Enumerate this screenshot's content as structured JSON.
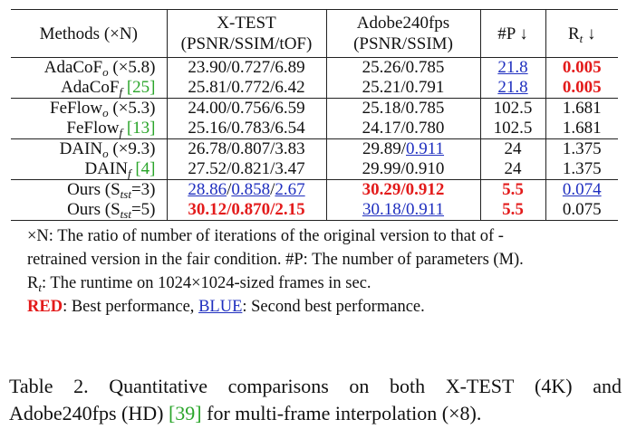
{
  "table": {
    "header": {
      "methods": "Methods (×N)",
      "xtest_line1": "X-TEST",
      "xtest_line2": "(PSNR/SSIM/tOF)",
      "adobe_line1": "Adobe240fps",
      "adobe_line2": "(PSNR/SSIM)",
      "params": "#P ↓",
      "runtime_main": "R",
      "runtime_sub": "t",
      "runtime_arrow": " ↓"
    },
    "groups": [
      [
        {
          "name": "AdaCoF",
          "sub": "o",
          "suffix": " (×5.8)",
          "ref": "",
          "xtest": [
            {
              "t": "23.90/0.727/6.89",
              "s": ""
            }
          ],
          "adobe": [
            {
              "t": "25.26/0.785",
              "s": ""
            }
          ],
          "params": [
            {
              "t": "21.8",
              "s": "blue"
            }
          ],
          "runtime": [
            {
              "t": "0.005",
              "s": "red"
            }
          ]
        },
        {
          "name": "AdaCoF",
          "sub": "f",
          "suffix": " ",
          "ref": "[25]",
          "xtest": [
            {
              "t": "25.81/0.772/6.42",
              "s": ""
            }
          ],
          "adobe": [
            {
              "t": "25.21/0.791",
              "s": ""
            }
          ],
          "params": [
            {
              "t": "21.8",
              "s": "blue"
            }
          ],
          "runtime": [
            {
              "t": "0.005",
              "s": "red"
            }
          ]
        }
      ],
      [
        {
          "name": "FeFlow",
          "sub": "o",
          "suffix": " (×5.3)",
          "ref": "",
          "xtest": [
            {
              "t": "24.00/0.756/6.59",
              "s": ""
            }
          ],
          "adobe": [
            {
              "t": "25.18/0.785",
              "s": ""
            }
          ],
          "params": [
            {
              "t": "102.5",
              "s": ""
            }
          ],
          "runtime": [
            {
              "t": "1.681",
              "s": ""
            }
          ]
        },
        {
          "name": "FeFlow",
          "sub": "f",
          "suffix": " ",
          "ref": "[13]",
          "xtest": [
            {
              "t": "25.16/0.783/6.54",
              "s": ""
            }
          ],
          "adobe": [
            {
              "t": "24.17/0.780",
              "s": ""
            }
          ],
          "params": [
            {
              "t": "102.5",
              "s": ""
            }
          ],
          "runtime": [
            {
              "t": "1.681",
              "s": ""
            }
          ]
        }
      ],
      [
        {
          "name": "DAIN",
          "sub": "o",
          "suffix": " (×9.3)",
          "ref": "",
          "xtest": [
            {
              "t": "26.78/0.807/3.83",
              "s": ""
            }
          ],
          "adobe": [
            {
              "t": "29.89/",
              "s": ""
            },
            {
              "t": "0.911",
              "s": "blue"
            }
          ],
          "params": [
            {
              "t": "24",
              "s": ""
            }
          ],
          "runtime": [
            {
              "t": "1.375",
              "s": ""
            }
          ]
        },
        {
          "name": "DAIN",
          "sub": "f",
          "suffix": " ",
          "ref": "[4]",
          "xtest": [
            {
              "t": "27.52/0.821/3.47",
              "s": ""
            }
          ],
          "adobe": [
            {
              "t": "29.99/0.910",
              "s": ""
            }
          ],
          "params": [
            {
              "t": "24",
              "s": ""
            }
          ],
          "runtime": [
            {
              "t": "1.375",
              "s": ""
            }
          ]
        }
      ],
      [
        {
          "name": "Ours (S",
          "sub": "tst",
          "suffix": "=3)",
          "ref": "",
          "xtest": [
            {
              "t": "28.86",
              "s": "blue"
            },
            {
              "t": "/",
              "s": ""
            },
            {
              "t": "0.858",
              "s": "blue"
            },
            {
              "t": "/",
              "s": ""
            },
            {
              "t": "2.67",
              "s": "blue"
            }
          ],
          "adobe": [
            {
              "t": "30.29/0.912",
              "s": "red"
            }
          ],
          "params": [
            {
              "t": "5.5",
              "s": "red"
            }
          ],
          "runtime": [
            {
              "t": "0.074",
              "s": "blue"
            }
          ]
        },
        {
          "name": "Ours (S",
          "sub": "tst",
          "suffix": "=5)",
          "ref": "",
          "xtest": [
            {
              "t": "30.12/0.870/2.15",
              "s": "red"
            }
          ],
          "adobe": [
            {
              "t": "30.18/0.911",
              "s": "blue"
            }
          ],
          "params": [
            {
              "t": "5.5",
              "s": "red"
            }
          ],
          "runtime": [
            {
              "t": "0.075",
              "s": ""
            }
          ]
        }
      ]
    ]
  },
  "notes": {
    "line1": "×N: The ratio of number of iterations of the original version to that of -",
    "line2": "retrained version in the fair condition.   #P: The number of parameters (M).",
    "line3_main": "R",
    "line3_sub": "t",
    "line3_rest": ": The runtime on 1024×1024-sized frames in sec.",
    "red_label": "RED",
    "red_text": ": Best performance, ",
    "blue_label": "BLUE",
    "blue_text": ": Second best performance."
  },
  "caption": {
    "line1_words": [
      "Table",
      "2.",
      "Quantitative",
      "comparisons",
      "on",
      "both",
      "X-TEST",
      "(4K)",
      "and"
    ],
    "line2": "Adobe240fps (HD) [39] for multi-frame interpolation (×8).",
    "line2_pre": "Adobe240fps (HD) ",
    "line2_ref": "[39]",
    "line2_post": " for multi-frame interpolation (×8)."
  },
  "colors": {
    "best": "#e31b1b",
    "second": "#1f2fbf",
    "ref": "#2aa52a"
  }
}
